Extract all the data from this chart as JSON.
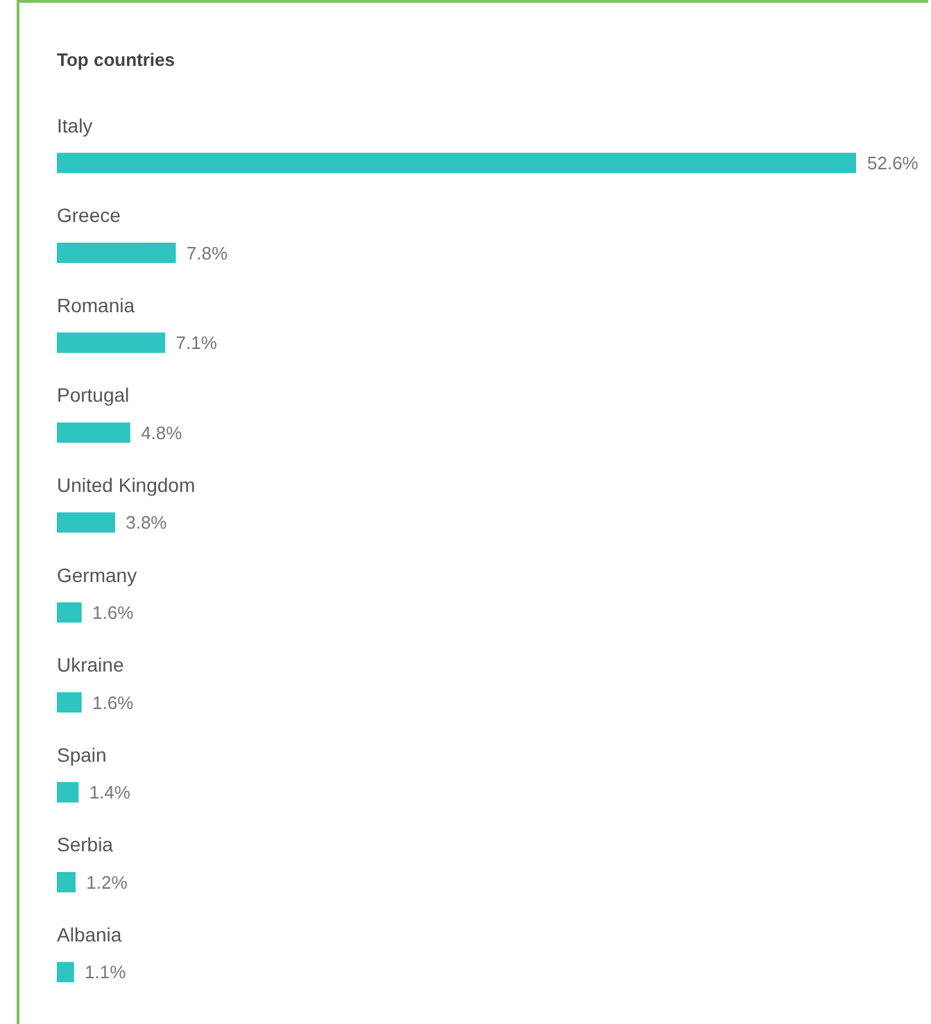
{
  "chart_data": {
    "type": "bar",
    "orientation": "horizontal",
    "title": "Top countries",
    "categories": [
      "Italy",
      "Greece",
      "Romania",
      "Portugal",
      "United Kingdom",
      "Germany",
      "Ukraine",
      "Spain",
      "Serbia",
      "Albania"
    ],
    "values": [
      52.6,
      7.8,
      7.1,
      4.8,
      3.8,
      1.6,
      1.6,
      1.4,
      1.2,
      1.1
    ],
    "value_labels": [
      "52.6%",
      "7.8%",
      "7.1%",
      "4.8%",
      "3.8%",
      "1.6%",
      "1.6%",
      "1.4%",
      "1.2%",
      "1.1%"
    ],
    "color": "#2ec4c0"
  }
}
